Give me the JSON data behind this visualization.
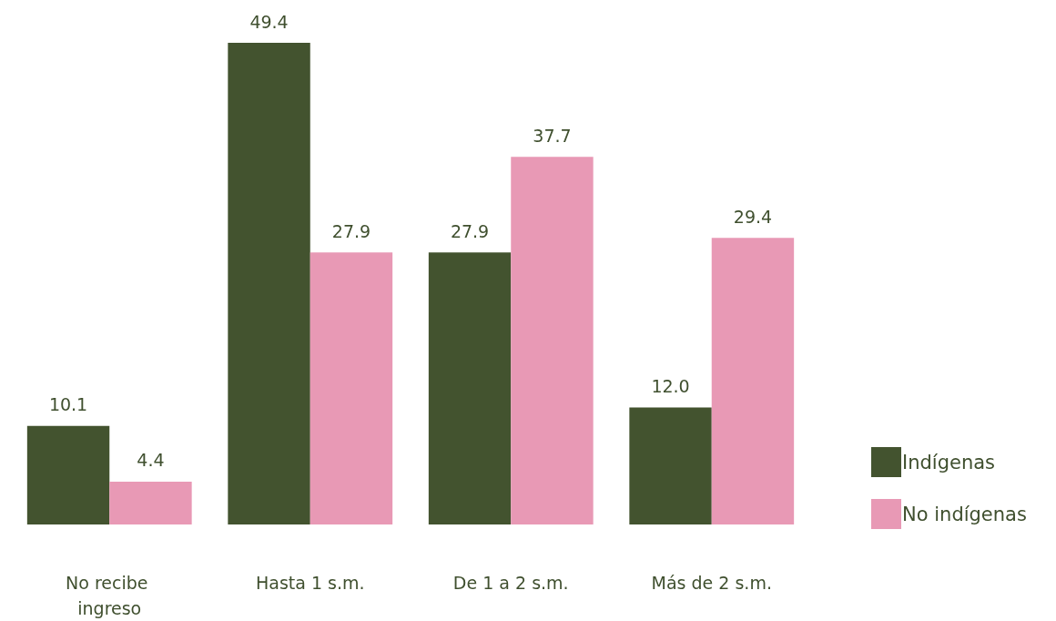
{
  "chart_data": {
    "type": "bar",
    "categories": [
      "No recibe ingreso",
      "Hasta 1 s.m.",
      "De 1 a 2 s.m.",
      "Más de 2 s.m."
    ],
    "series": [
      {
        "name": "Indígenas",
        "color": "#43532f",
        "values": [
          10.1,
          49.4,
          27.9,
          12.0
        ],
        "value_labels": [
          "10.1",
          "49.4",
          "27.9",
          "12.0"
        ]
      },
      {
        "name": "No indígenas",
        "color": "#e899b5",
        "values": [
          4.4,
          27.9,
          37.7,
          29.4
        ],
        "value_labels": [
          "4.4",
          "27.9",
          "37.7",
          "29.4"
        ]
      }
    ],
    "legend": "right"
  }
}
